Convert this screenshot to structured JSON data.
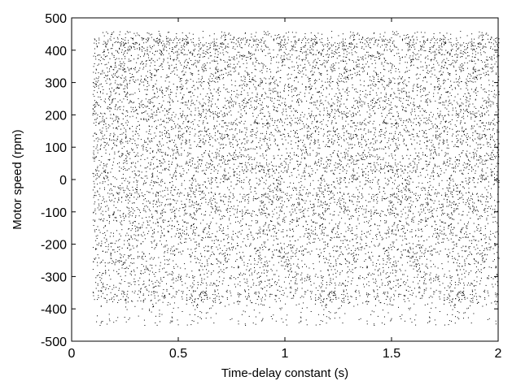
{
  "chart_data": {
    "type": "scatter",
    "title": "",
    "xlabel": "Time-delay constant (s)",
    "ylabel": "Motor speed (rpm)",
    "xlim": [
      0,
      2
    ],
    "ylim": [
      -500,
      500
    ],
    "xticks": [
      0,
      0.5,
      1,
      1.5,
      2
    ],
    "xtick_labels": [
      "0",
      "0.5",
      "1",
      "1.5",
      "2"
    ],
    "yticks": [
      -500,
      -400,
      -300,
      -200,
      -100,
      0,
      100,
      200,
      300,
      400,
      500
    ],
    "ytick_labels": [
      "-500",
      "-400",
      "-300",
      "-200",
      "-100",
      "0",
      "100",
      "200",
      "300",
      "400",
      "500"
    ],
    "grid": false,
    "legend": "none",
    "marker_color": "#000000",
    "description_of_data": {
      "x_range": [
        0.1,
        2.0
      ],
      "y_dense_range": [
        -380,
        440
      ],
      "y_extremes": [
        -450,
        460
      ]
    }
  }
}
